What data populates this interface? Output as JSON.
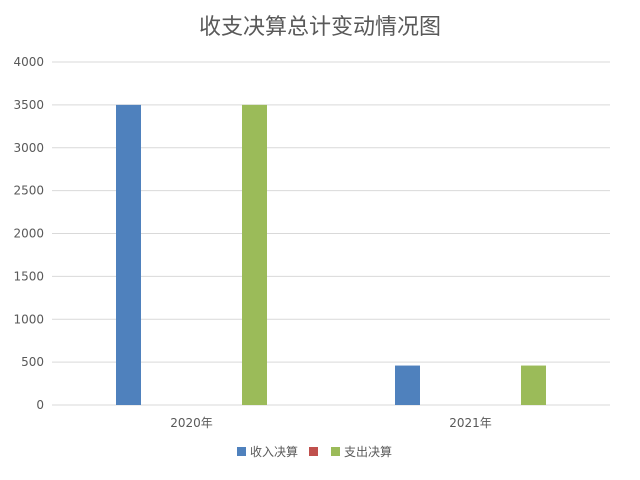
{
  "chart_data": {
    "type": "bar",
    "title": "收支决算总计变动情况图",
    "categories": [
      "2020年",
      "2021年"
    ],
    "series": [
      {
        "name": "收入决算",
        "values": [
          3500,
          460
        ],
        "color": "#4f81bd"
      },
      {
        "name": "",
        "values": [
          0,
          0
        ],
        "color": "#c0504d"
      },
      {
        "name": "支出决算",
        "values": [
          3500,
          460
        ],
        "color": "#9bbb59"
      }
    ],
    "ylim": [
      0,
      4000
    ],
    "yticks": [
      0,
      500,
      1000,
      1500,
      2000,
      2500,
      3000,
      3500,
      4000
    ],
    "grid": true,
    "legend_position": "bottom"
  }
}
